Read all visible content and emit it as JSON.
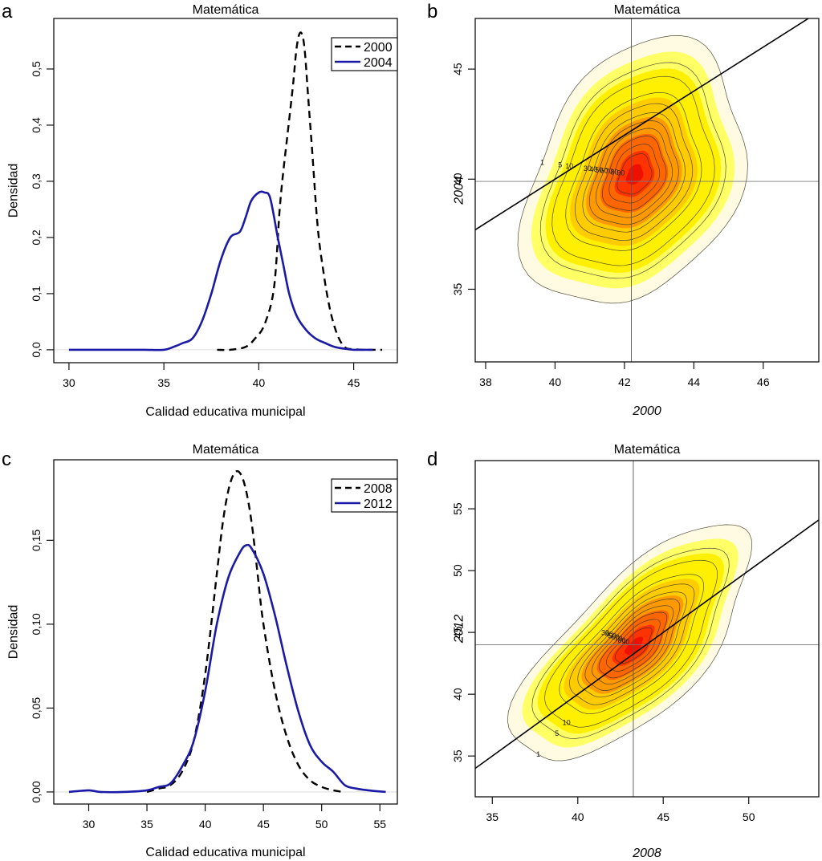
{
  "chart_data": [
    {
      "panel": "a",
      "type": "line",
      "title": "Matemática",
      "xlabel": "Calidad educativa municipal",
      "ylabel": "Densidad",
      "xlim": [
        29.2,
        47.3
      ],
      "ylim": [
        -0.023,
        0.59
      ],
      "xticks": [
        30,
        35,
        40,
        45
      ],
      "xtick_labels": [
        "30",
        "35",
        "40",
        "45"
      ],
      "yticks": [
        0.0,
        0.1,
        0.2,
        0.3,
        0.4,
        0.5
      ],
      "ytick_labels": [
        "0,0",
        "0,1",
        "0,2",
        "0,3",
        "0,4",
        "0,5"
      ],
      "legend_position": "top-right",
      "series": [
        {
          "name": "2000",
          "style": "dashed",
          "color": "#000000",
          "x": [
            37.8,
            38.5,
            39.3,
            39.8,
            40.3,
            40.8,
            41.1,
            41.3,
            41.5,
            41.8,
            42.0,
            42.2,
            42.4,
            42.6,
            42.8,
            43.1,
            43.4,
            43.7,
            44.0,
            44.3,
            44.6,
            45.0,
            45.5,
            46.0,
            46.5
          ],
          "y": [
            0.0,
            0.0,
            0.005,
            0.02,
            0.045,
            0.11,
            0.25,
            0.32,
            0.38,
            0.47,
            0.54,
            0.565,
            0.54,
            0.45,
            0.36,
            0.22,
            0.14,
            0.08,
            0.04,
            0.015,
            0.003,
            0.001,
            0.0,
            0.0,
            0.0
          ]
        },
        {
          "name": "2004",
          "style": "solid",
          "color": "#1a1aa6",
          "x": [
            30.0,
            31.0,
            32.0,
            33.0,
            34.0,
            35.0,
            35.5,
            36.0,
            36.5,
            37.0,
            37.5,
            38.0,
            38.5,
            39.0,
            39.3,
            39.6,
            40.0,
            40.3,
            40.6,
            41.0,
            41.3,
            41.6,
            42.0,
            42.5,
            43.0,
            43.5,
            44.0,
            44.5,
            45.0,
            45.5,
            46.0
          ],
          "y": [
            0.0,
            0.0,
            0.0,
            0.0,
            0.0,
            0.0,
            0.005,
            0.012,
            0.02,
            0.05,
            0.1,
            0.16,
            0.2,
            0.21,
            0.235,
            0.265,
            0.28,
            0.28,
            0.27,
            0.2,
            0.15,
            0.1,
            0.06,
            0.035,
            0.02,
            0.012,
            0.005,
            0.002,
            0.0,
            0.0,
            0.0
          ]
        }
      ]
    },
    {
      "panel": "b",
      "type": "heatmap",
      "subtype": "bivariate-density-contour",
      "title": "Matemática",
      "xlabel": "2000",
      "ylabel": "2004",
      "xlim": [
        37.7,
        47.6
      ],
      "ylim": [
        31.7,
        47.3
      ],
      "xticks": [
        38,
        40,
        42,
        44,
        46
      ],
      "xtick_labels": [
        "38",
        "40",
        "42",
        "44",
        "46"
      ],
      "yticks": [
        35,
        40,
        45
      ],
      "ytick_labels": [
        "35",
        "40",
        "45"
      ],
      "center": [
        42.3,
        40.2
      ],
      "reference_lines": {
        "vertical_x": 42.2,
        "horizontal_y": 39.9,
        "identity_line": "y = x"
      },
      "contour_levels": [
        1,
        5,
        10,
        20,
        30,
        40,
        50,
        60,
        70,
        80,
        90
      ],
      "contour_labels": [
        "1",
        "5",
        "10",
        "30",
        "40",
        "50",
        "60",
        "70",
        "80",
        "90"
      ],
      "spread": {
        "sx": 1.1,
        "sy": 2.1,
        "rho": 0.3
      },
      "colormap": [
        "#fffbe0",
        "#ffff66",
        "#ffef00",
        "#ffcc00",
        "#ff9900",
        "#ff6600",
        "#ff3300",
        "#ee1100"
      ]
    },
    {
      "panel": "c",
      "type": "line",
      "title": "Matemática",
      "xlabel": "Calidad educativa municipal",
      "ylabel": "Densidad",
      "xlim": [
        27.0,
        56.5
      ],
      "ylim": [
        -0.0072,
        0.198
      ],
      "xticks": [
        30,
        35,
        40,
        45,
        50,
        55
      ],
      "xtick_labels": [
        "30",
        "35",
        "40",
        "45",
        "50",
        "55"
      ],
      "yticks": [
        0.0,
        0.05,
        0.1,
        0.15
      ],
      "ytick_labels": [
        "0,00",
        "0,05",
        "0,10",
        "0,15"
      ],
      "legend_position": "top-right",
      "series": [
        {
          "name": "2008",
          "style": "dashed",
          "color": "#000000",
          "x": [
            35.0,
            36.0,
            37.0,
            38.0,
            39.0,
            40.0,
            41.0,
            41.5,
            42.0,
            42.5,
            43.0,
            43.5,
            44.0,
            44.5,
            45.0,
            46.0,
            47.0,
            48.0,
            49.0,
            50.0,
            51.0,
            51.8
          ],
          "y": [
            0.0,
            0.002,
            0.004,
            0.012,
            0.03,
            0.07,
            0.13,
            0.16,
            0.18,
            0.19,
            0.19,
            0.18,
            0.16,
            0.13,
            0.1,
            0.06,
            0.033,
            0.016,
            0.007,
            0.003,
            0.001,
            0.0
          ]
        },
        {
          "name": "2012",
          "style": "solid",
          "color": "#1a1aa6",
          "x": [
            28.3,
            30.0,
            31.0,
            33.0,
            35.0,
            36.0,
            37.0,
            38.0,
            39.0,
            40.0,
            41.0,
            42.0,
            43.0,
            43.5,
            44.0,
            45.0,
            46.0,
            47.0,
            48.0,
            49.0,
            50.0,
            51.0,
            52.0,
            53.0,
            54.0,
            55.5
          ],
          "y": [
            0.0,
            0.001,
            0.0,
            0.0,
            0.001,
            0.003,
            0.005,
            0.015,
            0.03,
            0.06,
            0.1,
            0.128,
            0.143,
            0.147,
            0.145,
            0.13,
            0.105,
            0.075,
            0.048,
            0.028,
            0.018,
            0.012,
            0.004,
            0.002,
            0.001,
            0.0
          ]
        }
      ]
    },
    {
      "panel": "d",
      "type": "heatmap",
      "subtype": "bivariate-density-contour",
      "title": "Matemática",
      "xlabel": "2008",
      "ylabel": "2012",
      "xlim": [
        34.0,
        54.1
      ],
      "ylim": [
        31.7,
        58.9
      ],
      "xticks": [
        35,
        40,
        45,
        50
      ],
      "xtick_labels": [
        "35",
        "40",
        "45",
        "50"
      ],
      "yticks": [
        35,
        40,
        45,
        50,
        55
      ],
      "ytick_labels": [
        "35",
        "40",
        "45",
        "50",
        "55"
      ],
      "center": [
        43.3,
        43.9
      ],
      "reference_lines": {
        "vertical_x": 43.25,
        "horizontal_y": 44.0,
        "identity_line": "y = x"
      },
      "contour_levels": [
        1,
        5,
        10,
        20,
        30,
        40,
        50,
        60,
        70,
        80,
        90
      ],
      "contour_labels": [
        "1",
        "5",
        "10",
        "30",
        "40",
        "50",
        "60",
        "70",
        "80",
        "90"
      ],
      "spread": {
        "sx": 2.4,
        "sy": 3.3,
        "rho": 0.7
      },
      "colormap": [
        "#fffbe0",
        "#ffff66",
        "#ffef00",
        "#ffcc00",
        "#ff9900",
        "#ff6600",
        "#ff3300",
        "#ee1100"
      ]
    }
  ],
  "panels": {
    "a": {
      "letter": "a",
      "title": "Matemática",
      "xlabel": "Calidad educativa municipal",
      "ylabel": "Densidad",
      "legend": [
        "2000",
        "2004"
      ]
    },
    "b": {
      "letter": "b",
      "title": "Matemática",
      "xlabel": "2000",
      "ylabel": "2004"
    },
    "c": {
      "letter": "c",
      "title": "Matemática",
      "xlabel": "Calidad educativa municipal",
      "ylabel": "Densidad",
      "legend": [
        "2008",
        "2012"
      ]
    },
    "d": {
      "letter": "d",
      "title": "Matemática",
      "xlabel": "2008",
      "ylabel": "2012"
    }
  }
}
